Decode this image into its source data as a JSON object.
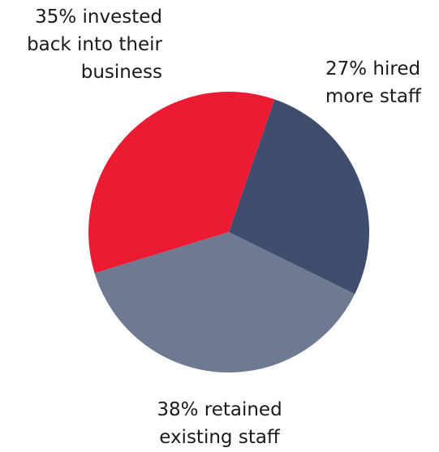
{
  "chart_data": {
    "type": "pie",
    "title": "",
    "slices": [
      {
        "label_lines": [
          "27% hired",
          "more staff"
        ],
        "value": 27,
        "color": "#3f4e6e"
      },
      {
        "label_lines": [
          "38% retained",
          "existing staff"
        ],
        "value": 38,
        "color": "#6e7a91"
      },
      {
        "label_lines": [
          "35% invested",
          "back into their",
          "business"
        ],
        "value": 35,
        "color": "#ec1a32"
      }
    ],
    "start_angle_deg": 19,
    "direction": "clockwise",
    "legend": "none"
  }
}
